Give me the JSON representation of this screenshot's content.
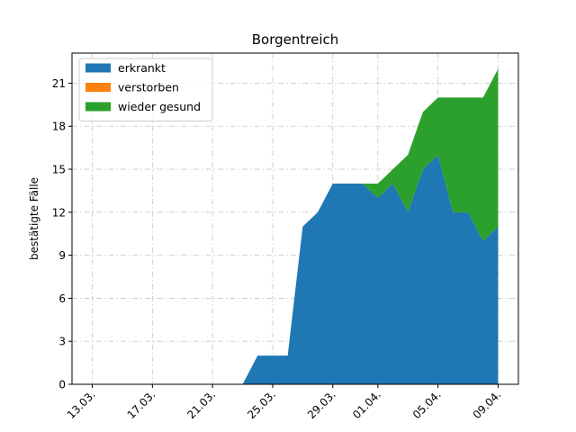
{
  "chart_data": {
    "type": "area",
    "stacked": true,
    "title": "Borgentreich",
    "xlabel": "",
    "ylabel": "bestätigte Fälle",
    "x": [
      "2020-03-13",
      "2020-03-14",
      "2020-03-15",
      "2020-03-16",
      "2020-03-17",
      "2020-03-18",
      "2020-03-19",
      "2020-03-20",
      "2020-03-21",
      "2020-03-22",
      "2020-03-23",
      "2020-03-24",
      "2020-03-25",
      "2020-03-26",
      "2020-03-27",
      "2020-03-28",
      "2020-03-29",
      "2020-03-30",
      "2020-03-31",
      "2020-04-01",
      "2020-04-02",
      "2020-04-03",
      "2020-04-04",
      "2020-04-05",
      "2020-04-06",
      "2020-04-07",
      "2020-04-08",
      "2020-04-09"
    ],
    "series": [
      {
        "name": "erkrankt",
        "color": "#1f77b4",
        "values": [
          0,
          0,
          0,
          0,
          0,
          0,
          0,
          0,
          0,
          0,
          0,
          2,
          2,
          2,
          11,
          12,
          14,
          14,
          14,
          13,
          14,
          12,
          15,
          16,
          12,
          12,
          10,
          11
        ]
      },
      {
        "name": "verstorben",
        "color": "#ff7f0e",
        "values": [
          0,
          0,
          0,
          0,
          0,
          0,
          0,
          0,
          0,
          0,
          0,
          0,
          0,
          0,
          0,
          0,
          0,
          0,
          0,
          0,
          0,
          0,
          0,
          0,
          0,
          0,
          0,
          0
        ]
      },
      {
        "name": "wieder gesund",
        "color": "#2ca02c",
        "values": [
          0,
          0,
          0,
          0,
          0,
          0,
          0,
          0,
          0,
          0,
          0,
          0,
          0,
          0,
          0,
          0,
          0,
          0,
          0,
          1,
          1,
          4,
          4,
          4,
          8,
          8,
          10,
          11
        ]
      }
    ],
    "xticks": [
      {
        "date": "2020-03-13",
        "label": "13.03."
      },
      {
        "date": "2020-03-17",
        "label": "17.03."
      },
      {
        "date": "2020-03-21",
        "label": "21.03."
      },
      {
        "date": "2020-03-25",
        "label": "25.03."
      },
      {
        "date": "2020-03-29",
        "label": "29.03."
      },
      {
        "date": "2020-04-01",
        "label": "01.04."
      },
      {
        "date": "2020-04-05",
        "label": "05.04."
      },
      {
        "date": "2020-04-09",
        "label": "09.04."
      }
    ],
    "yticks": [
      0,
      3,
      6,
      9,
      12,
      15,
      18,
      21
    ],
    "xlim": [
      "2020-03-13",
      "2020-04-09"
    ],
    "ylim": [
      0,
      23.1
    ],
    "grid": true,
    "legend": {
      "position": "top-left"
    }
  }
}
